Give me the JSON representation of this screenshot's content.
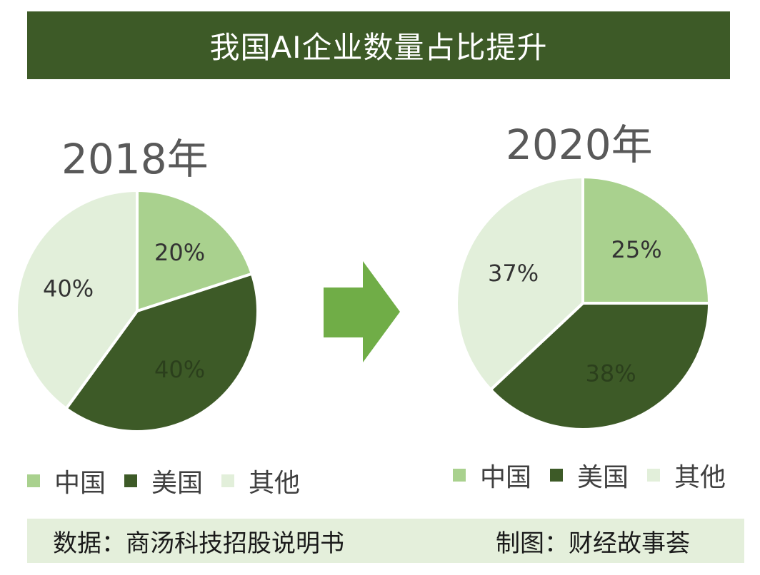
{
  "title": "我国AI企业数量占比提升",
  "colors": {
    "china": "#a9d18e",
    "usa": "#3d5a27",
    "other": "#e2efda",
    "arrow": "#70ad47",
    "title_bg": "#3d5a27",
    "footer_bg": "#e4efdb"
  },
  "chart_data": [
    {
      "type": "pie",
      "title": "2018年",
      "categories": [
        "中国",
        "美国",
        "其他"
      ],
      "values": [
        20,
        40,
        40
      ],
      "data_labels": [
        "20%",
        "40%",
        "40%"
      ],
      "legend_position": "bottom"
    },
    {
      "type": "pie",
      "title": "2020年",
      "categories": [
        "中国",
        "美国",
        "其他"
      ],
      "values": [
        25,
        38,
        37
      ],
      "data_labels": [
        "25%",
        "38%",
        "37%"
      ],
      "legend_position": "bottom"
    }
  ],
  "footer": {
    "source": "数据：商汤科技招股说明书",
    "credit": "制图：财经故事荟"
  }
}
